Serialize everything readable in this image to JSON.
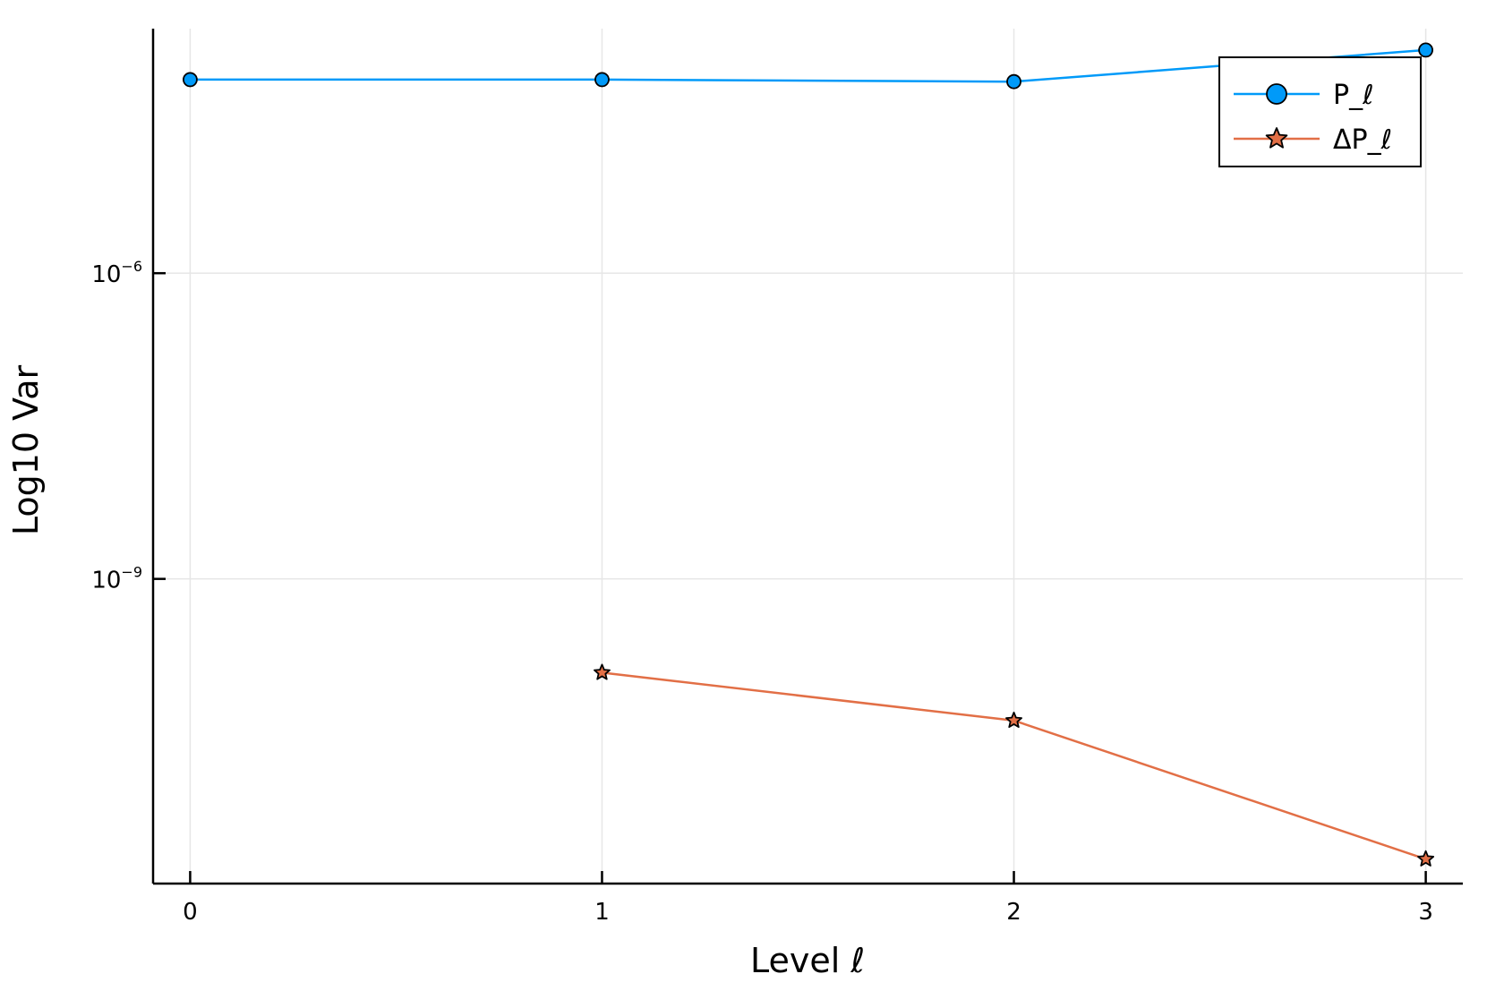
{
  "chart_data": {
    "type": "line",
    "xlabel": "Level ℓ",
    "ylabel": "Log10 Var",
    "x": [
      0,
      1,
      2,
      3
    ],
    "xticks": [
      "0",
      "1",
      "2",
      "3"
    ],
    "xlim": [
      -0.09,
      3.09
    ],
    "ylim": [
      -11.99,
      -3.6
    ],
    "yscale": "log10",
    "yticks": [
      {
        "base": "10",
        "exp": "−6",
        "value": -6
      },
      {
        "base": "10",
        "exp": "−9",
        "value": -9
      }
    ],
    "grid": true,
    "legend_position": "top-right",
    "series": [
      {
        "name": "P_ℓ",
        "color": "#009af9",
        "marker": "circle",
        "x": [
          0,
          1,
          2,
          3
        ],
        "log10_values": [
          -4.1,
          -4.1,
          -4.12,
          -3.81
        ]
      },
      {
        "name": "ΔP_ℓ",
        "color": "#e26f46",
        "marker": "star",
        "x": [
          1,
          2,
          3
        ],
        "log10_values": [
          -9.92,
          -10.39,
          -11.75
        ]
      }
    ]
  }
}
